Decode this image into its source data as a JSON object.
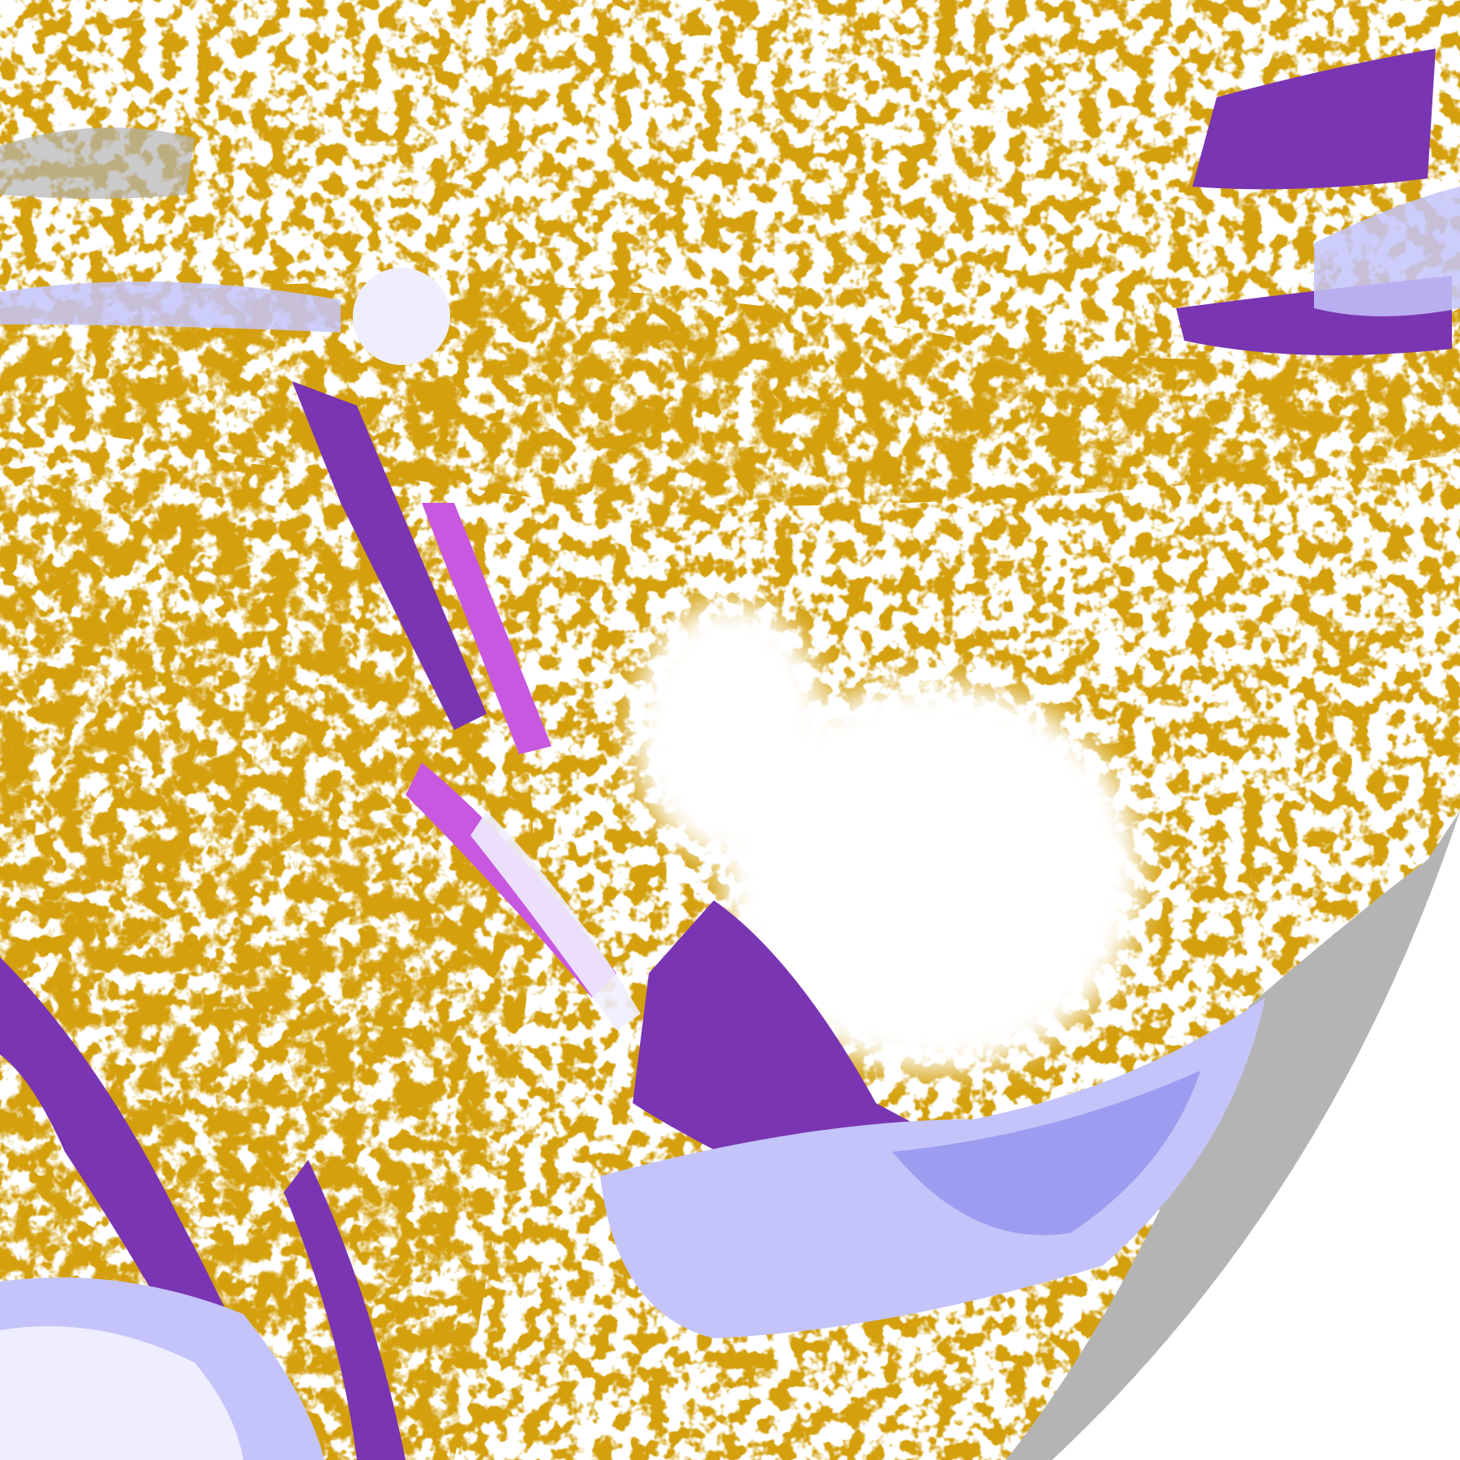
{
  "palette": {
    "background": "#ffffff",
    "gold": "#d4a00c",
    "purple": "#7a35b2",
    "magenta": "#c858e0",
    "lavender": "#c4c4fa",
    "periwinkle": "#9c9cf0",
    "pale": "#eeeeff",
    "gray": "#b4b4b4"
  }
}
